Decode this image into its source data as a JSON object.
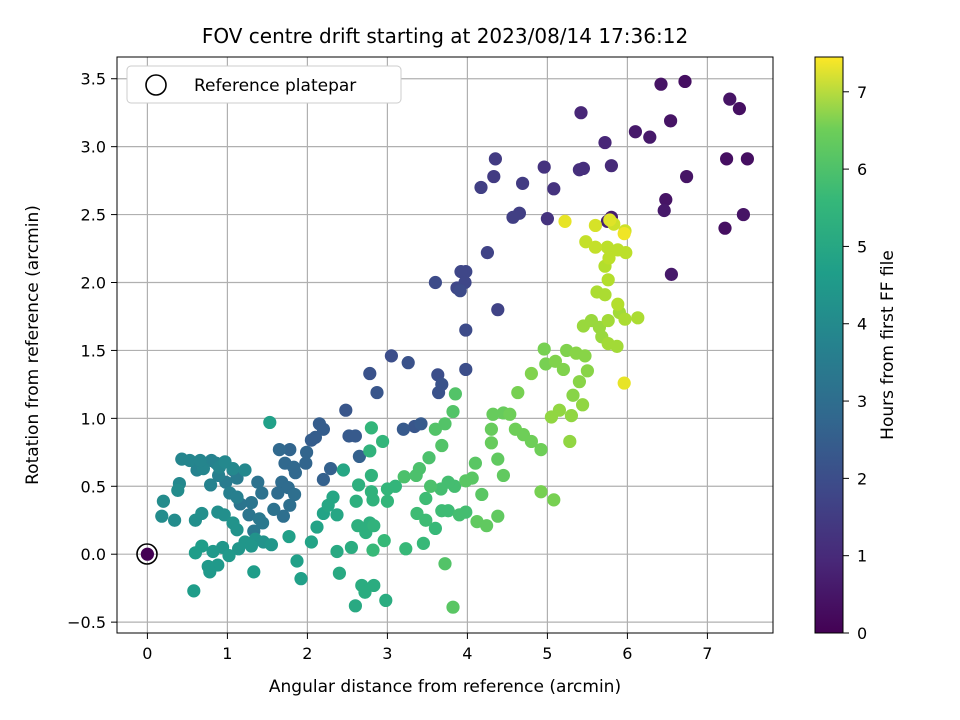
{
  "chart_data": {
    "type": "scatter",
    "title": "FOV centre drift starting at 2023/08/14 17:36:12",
    "xlabel": "Angular distance from reference (arcmin)",
    "ylabel": "Rotation from reference (arcmin)",
    "xlim": [
      -0.38,
      7.82
    ],
    "ylim": [
      -0.58,
      3.66
    ],
    "x_ticks": [
      0,
      1,
      2,
      3,
      4,
      5,
      6,
      7
    ],
    "y_ticks": [
      -0.5,
      0.0,
      0.5,
      1.0,
      1.5,
      2.0,
      2.5,
      3.0,
      3.5
    ],
    "x_tick_labels": [
      "0",
      "1",
      "2",
      "3",
      "4",
      "5",
      "6",
      "7"
    ],
    "y_tick_labels": [
      "−0.5",
      "0.0",
      "0.5",
      "1.0",
      "1.5",
      "2.0",
      "2.5",
      "3.0",
      "3.5"
    ],
    "grid": true,
    "legend": {
      "placement": "top-left",
      "entries": [
        "Reference platepar"
      ]
    },
    "colorbar": {
      "label": "Hours from first FF file",
      "colormap": "viridis",
      "range": [
        0,
        7.45
      ],
      "ticks": [
        0,
        1,
        2,
        3,
        4,
        5,
        6,
        7
      ],
      "tick_labels": [
        "0",
        "1",
        "2",
        "3",
        "4",
        "5",
        "6",
        "7"
      ]
    },
    "reference": {
      "x": 0,
      "y": 0,
      "hours": 0
    },
    "points": [
      [
        6.72,
        3.48,
        0.3
      ],
      [
        6.42,
        3.46,
        0.4
      ],
      [
        7.28,
        3.35,
        0.4
      ],
      [
        7.4,
        3.28,
        0.3
      ],
      [
        6.54,
        3.19,
        0.4
      ],
      [
        6.1,
        3.11,
        0.5
      ],
      [
        6.28,
        3.07,
        0.5
      ],
      [
        7.5,
        2.91,
        0.3
      ],
      [
        7.24,
        2.91,
        0.3
      ],
      [
        6.74,
        2.78,
        0.4
      ],
      [
        6.48,
        2.61,
        0.4
      ],
      [
        6.46,
        2.53,
        0.5
      ],
      [
        7.45,
        2.5,
        0.4
      ],
      [
        7.22,
        2.4,
        0.3
      ],
      [
        6.55,
        2.06,
        0.5
      ],
      [
        5.8,
        2.48,
        0.6
      ],
      [
        5.75,
        2.45,
        0.7
      ],
      [
        5.42,
        3.25,
        0.8
      ],
      [
        5.72,
        3.03,
        0.8
      ],
      [
        5.8,
        2.86,
        0.9
      ],
      [
        5.45,
        2.84,
        1.0
      ],
      [
        5.4,
        2.83,
        1.0
      ],
      [
        4.96,
        2.85,
        1.1
      ],
      [
        5.08,
        2.69,
        1.1
      ],
      [
        5.0,
        2.47,
        1.1
      ],
      [
        4.35,
        2.91,
        1.3
      ],
      [
        4.69,
        2.73,
        1.3
      ],
      [
        4.33,
        2.78,
        1.3
      ],
      [
        4.17,
        2.7,
        1.4
      ],
      [
        4.65,
        2.51,
        1.4
      ],
      [
        4.57,
        2.48,
        1.4
      ],
      [
        4.25,
        2.22,
        1.5
      ],
      [
        4.38,
        1.8,
        1.5
      ],
      [
        3.98,
        2.08,
        1.6
      ],
      [
        3.92,
        2.08,
        1.6
      ],
      [
        3.97,
        2.0,
        1.6
      ],
      [
        3.87,
        1.96,
        1.6
      ],
      [
        3.91,
        1.94,
        1.7
      ],
      [
        3.6,
        2.0,
        1.7
      ],
      [
        3.98,
        1.65,
        1.7
      ],
      [
        3.98,
        1.36,
        1.8
      ],
      [
        3.63,
        1.32,
        1.8
      ],
      [
        3.05,
        1.46,
        1.8
      ],
      [
        2.78,
        1.33,
        1.9
      ],
      [
        3.26,
        1.41,
        1.9
      ],
      [
        3.68,
        1.25,
        1.9
      ],
      [
        3.64,
        1.19,
        1.9
      ],
      [
        2.87,
        1.19,
        2.0
      ],
      [
        2.48,
        1.06,
        2.0
      ],
      [
        3.34,
        0.94,
        2.0
      ],
      [
        3.2,
        0.92,
        2.1
      ],
      [
        3.42,
        0.96,
        2.1
      ],
      [
        2.52,
        0.87,
        2.1
      ],
      [
        2.6,
        0.87,
        2.1
      ],
      [
        2.15,
        0.96,
        2.2
      ],
      [
        2.1,
        0.86,
        2.2
      ],
      [
        2.2,
        0.92,
        2.2
      ],
      [
        2.05,
        0.84,
        2.2
      ],
      [
        2.65,
        0.72,
        2.3
      ],
      [
        2.29,
        0.63,
        2.3
      ],
      [
        2.2,
        0.55,
        2.3
      ],
      [
        1.99,
        0.75,
        2.4
      ],
      [
        1.78,
        0.77,
        2.4
      ],
      [
        1.65,
        0.77,
        2.5
      ],
      [
        1.98,
        0.67,
        2.4
      ],
      [
        1.85,
        0.6,
        2.5
      ],
      [
        1.72,
        0.67,
        2.5
      ],
      [
        1.83,
        0.64,
        2.5
      ],
      [
        1.68,
        0.53,
        2.6
      ],
      [
        1.76,
        0.49,
        2.6
      ],
      [
        1.63,
        0.45,
        2.6
      ],
      [
        1.84,
        0.44,
        2.7
      ],
      [
        1.78,
        0.36,
        2.7
      ],
      [
        1.7,
        0.28,
        2.7
      ],
      [
        1.58,
        0.33,
        2.8
      ],
      [
        1.38,
        0.53,
        2.8
      ],
      [
        1.43,
        0.45,
        2.8
      ],
      [
        1.3,
        0.38,
        2.9
      ],
      [
        1.16,
        0.37,
        2.9
      ],
      [
        1.27,
        0.29,
        2.9
      ],
      [
        1.4,
        0.26,
        3.0
      ],
      [
        1.44,
        0.23,
        3.0
      ],
      [
        1.33,
        0.17,
        3.0
      ],
      [
        1.07,
        0.62,
        3.1
      ],
      [
        1.12,
        0.56,
        3.1
      ],
      [
        0.98,
        0.53,
        3.1
      ],
      [
        0.89,
        0.58,
        3.2
      ],
      [
        1.03,
        0.45,
        3.2
      ],
      [
        1.12,
        0.42,
        3.2
      ],
      [
        0.8,
        0.69,
        3.3
      ],
      [
        0.86,
        0.67,
        3.3
      ],
      [
        0.79,
        0.51,
        3.3
      ],
      [
        0.62,
        0.62,
        3.3
      ],
      [
        0.7,
        0.63,
        3.4
      ],
      [
        0.43,
        0.7,
        3.4
      ],
      [
        0.53,
        0.69,
        3.4
      ],
      [
        0.66,
        0.69,
        3.4
      ],
      [
        0.9,
        0.64,
        3.4
      ],
      [
        0.97,
        0.68,
        3.5
      ],
      [
        1.07,
        0.63,
        3.5
      ],
      [
        1.22,
        0.62,
        3.5
      ],
      [
        0.4,
        0.52,
        3.5
      ],
      [
        0.38,
        0.47,
        3.6
      ],
      [
        0.2,
        0.39,
        3.6
      ],
      [
        0.34,
        0.25,
        3.6
      ],
      [
        0.18,
        0.28,
        3.6
      ],
      [
        0.6,
        0.25,
        3.7
      ],
      [
        0.68,
        0.3,
        3.7
      ],
      [
        0.88,
        0.31,
        3.7
      ],
      [
        0.96,
        0.29,
        3.7
      ],
      [
        1.07,
        0.23,
        3.8
      ],
      [
        1.12,
        0.18,
        3.8
      ],
      [
        1.35,
        0.11,
        3.8
      ],
      [
        1.45,
        0.09,
        3.8
      ],
      [
        1.22,
        0.09,
        3.9
      ],
      [
        1.3,
        0.06,
        3.9
      ],
      [
        1.55,
        0.07,
        3.9
      ],
      [
        1.14,
        0.04,
        3.9
      ],
      [
        0.94,
        0.05,
        3.9
      ],
      [
        0.82,
        0.02,
        4.0
      ],
      [
        1.02,
        -0.01,
        4.0
      ],
      [
        0.88,
        -0.08,
        4.0
      ],
      [
        0.76,
        -0.09,
        4.0
      ],
      [
        0.78,
        -0.13,
        4.0
      ],
      [
        0.68,
        0.06,
        4.1
      ],
      [
        0.6,
        0.01,
        4.1
      ],
      [
        0.58,
        -0.27,
        4.1
      ],
      [
        1.33,
        -0.13,
        4.1
      ],
      [
        1.87,
        -0.05,
        4.2
      ],
      [
        1.92,
        -0.18,
        4.2
      ],
      [
        1.77,
        0.13,
        4.2
      ],
      [
        1.53,
        0.97,
        4.2
      ],
      [
        2.05,
        0.09,
        4.3
      ],
      [
        2.12,
        0.2,
        4.3
      ],
      [
        2.2,
        0.3,
        4.3
      ],
      [
        2.37,
        0.29,
        4.4
      ],
      [
        2.26,
        0.36,
        4.4
      ],
      [
        2.32,
        0.42,
        4.4
      ],
      [
        2.45,
        0.62,
        4.4
      ],
      [
        2.37,
        0.02,
        4.5
      ],
      [
        2.4,
        -0.14,
        4.5
      ],
      [
        2.6,
        -0.38,
        4.5
      ],
      [
        2.68,
        -0.23,
        4.6
      ],
      [
        2.83,
        -0.23,
        4.6
      ],
      [
        2.98,
        -0.34,
        4.6
      ],
      [
        2.72,
        -0.28,
        4.6
      ],
      [
        2.55,
        0.05,
        4.6
      ],
      [
        2.61,
        0.39,
        4.7
      ],
      [
        2.64,
        0.51,
        4.7
      ],
      [
        2.78,
        0.23,
        4.7
      ],
      [
        2.63,
        0.21,
        4.7
      ],
      [
        2.73,
        0.16,
        4.7
      ],
      [
        2.83,
        0.21,
        4.8
      ],
      [
        2.82,
        0.4,
        4.8
      ],
      [
        2.8,
        0.46,
        4.8
      ],
      [
        2.8,
        0.58,
        4.8
      ],
      [
        2.78,
        0.76,
        4.8
      ],
      [
        2.8,
        0.93,
        4.9
      ],
      [
        2.94,
        0.83,
        4.9
      ],
      [
        3.1,
        0.5,
        4.9
      ],
      [
        3.0,
        0.48,
        4.9
      ],
      [
        3.0,
        0.39,
        4.9
      ],
      [
        2.96,
        0.1,
        5.0
      ],
      [
        2.82,
        0.03,
        5.0
      ],
      [
        3.23,
        0.04,
        5.0
      ],
      [
        3.45,
        0.08,
        5.0
      ],
      [
        3.6,
        0.19,
        5.0
      ],
      [
        3.37,
        0.3,
        5.1
      ],
      [
        3.48,
        0.25,
        5.1
      ],
      [
        3.48,
        0.41,
        5.1
      ],
      [
        3.68,
        0.32,
        5.1
      ],
      [
        3.76,
        0.32,
        5.1
      ],
      [
        3.9,
        0.29,
        5.2
      ],
      [
        3.98,
        0.31,
        5.2
      ],
      [
        3.84,
        0.5,
        5.2
      ],
      [
        3.76,
        0.53,
        5.2
      ],
      [
        3.67,
        0.48,
        5.2
      ],
      [
        3.54,
        0.5,
        5.3
      ],
      [
        3.36,
        0.58,
        5.3
      ],
      [
        3.21,
        0.57,
        5.3
      ],
      [
        3.4,
        0.63,
        5.3
      ],
      [
        3.52,
        0.71,
        5.3
      ],
      [
        3.68,
        0.8,
        5.4
      ],
      [
        3.6,
        0.92,
        5.4
      ],
      [
        3.72,
        0.96,
        5.4
      ],
      [
        3.82,
        1.05,
        5.4
      ],
      [
        3.85,
        1.18,
        5.4
      ],
      [
        3.72,
        -0.07,
        5.4
      ],
      [
        3.82,
        -0.39,
        5.5
      ],
      [
        3.98,
        0.54,
        5.5
      ],
      [
        4.06,
        0.56,
        5.5
      ],
      [
        4.1,
        0.67,
        5.5
      ],
      [
        4.18,
        0.44,
        5.5
      ],
      [
        4.12,
        0.24,
        5.6
      ],
      [
        4.24,
        0.21,
        5.6
      ],
      [
        4.38,
        0.28,
        5.6
      ],
      [
        4.45,
        0.58,
        5.6
      ],
      [
        4.38,
        0.7,
        5.6
      ],
      [
        4.3,
        0.82,
        5.7
      ],
      [
        4.3,
        0.92,
        5.7
      ],
      [
        4.32,
        1.03,
        5.7
      ],
      [
        4.45,
        1.04,
        5.7
      ],
      [
        4.53,
        1.03,
        5.8
      ],
      [
        4.6,
        0.92,
        5.8
      ],
      [
        4.7,
        0.88,
        5.8
      ],
      [
        4.8,
        0.83,
        5.8
      ],
      [
        4.92,
        0.77,
        5.8
      ],
      [
        4.92,
        0.46,
        5.9
      ],
      [
        5.08,
        0.4,
        5.9
      ],
      [
        4.96,
        1.51,
        5.9
      ],
      [
        4.98,
        1.4,
        5.9
      ],
      [
        4.63,
        1.19,
        5.9
      ],
      [
        4.8,
        1.33,
        6.0
      ],
      [
        5.2,
        1.36,
        6.0
      ],
      [
        5.1,
        1.42,
        6.0
      ],
      [
        5.24,
        1.5,
        6.0
      ],
      [
        5.36,
        1.48,
        6.1
      ],
      [
        5.47,
        1.46,
        6.1
      ],
      [
        5.5,
        1.35,
        6.1
      ],
      [
        5.4,
        1.27,
        6.1
      ],
      [
        5.32,
        1.17,
        6.1
      ],
      [
        5.44,
        1.1,
        6.2
      ],
      [
        5.3,
        1.02,
        6.2
      ],
      [
        5.15,
        1.06,
        6.2
      ],
      [
        5.05,
        1.01,
        6.2
      ],
      [
        5.28,
        0.83,
        6.2
      ],
      [
        5.45,
        1.68,
        6.3
      ],
      [
        5.55,
        1.72,
        6.3
      ],
      [
        5.65,
        1.67,
        6.3
      ],
      [
        5.68,
        1.6,
        6.3
      ],
      [
        5.76,
        1.55,
        6.4
      ],
      [
        5.87,
        1.53,
        6.4
      ],
      [
        5.76,
        1.72,
        6.4
      ],
      [
        5.9,
        1.78,
        6.4
      ],
      [
        5.97,
        1.73,
        6.5
      ],
      [
        6.13,
        1.74,
        6.5
      ],
      [
        5.62,
        1.93,
        6.5
      ],
      [
        5.72,
        1.91,
        6.5
      ],
      [
        5.88,
        1.84,
        6.6
      ],
      [
        5.76,
        2.02,
        6.6
      ],
      [
        5.72,
        2.12,
        6.6
      ],
      [
        5.77,
        2.18,
        6.7
      ],
      [
        5.75,
        2.26,
        6.7
      ],
      [
        5.88,
        2.24,
        6.7
      ],
      [
        5.98,
        2.22,
        6.7
      ],
      [
        5.6,
        2.26,
        6.8
      ],
      [
        5.48,
        2.3,
        6.8
      ],
      [
        5.83,
        2.43,
        6.9
      ],
      [
        5.97,
        2.38,
        6.9
      ],
      [
        5.6,
        2.42,
        7.0
      ],
      [
        5.78,
        2.46,
        7.1
      ],
      [
        5.22,
        2.45,
        7.2
      ],
      [
        5.96,
        1.26,
        7.2
      ],
      [
        5.96,
        2.36,
        7.3
      ]
    ]
  }
}
